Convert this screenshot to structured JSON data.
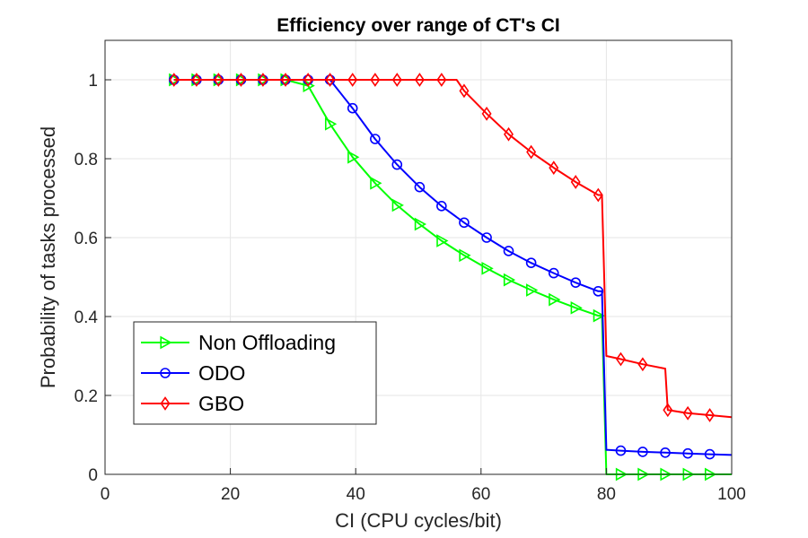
{
  "chart_data": {
    "type": "line",
    "title": "Efficiency over range of CT's CI",
    "xlabel": "CI (CPU cycles/bit)",
    "ylabel": "Probability of tasks processed",
    "xlim": [
      0,
      100
    ],
    "ylim": [
      0,
      1.1
    ],
    "xticks": [
      0,
      20,
      40,
      60,
      80,
      100
    ],
    "xtick_labels": [
      "0",
      "20",
      "40",
      "60",
      "80",
      "100"
    ],
    "yticks": [
      0,
      0.2,
      0.4,
      0.6,
      0.8,
      1
    ],
    "ytick_labels": [
      "0",
      "0.2",
      "0.4",
      "0.6",
      "0.8",
      "1"
    ],
    "grid": true,
    "legend_position": "lower-left",
    "series": [
      {
        "name": "Non Offloading",
        "color": "#00ff00",
        "marker": "triangle-right",
        "x": [
          11,
          14.6,
          18.1,
          21.7,
          25.2,
          28.8,
          32.4,
          35.9,
          39.5,
          43.1,
          46.6,
          50.2,
          53.7,
          57.3,
          60.9,
          64.4,
          68,
          71.6,
          75.1,
          78.7,
          79.3,
          80,
          82.3,
          85.8,
          89.4,
          93,
          96.5,
          100
        ],
        "y": [
          1,
          1,
          1,
          1,
          1,
          1,
          0.985,
          0.888,
          0.804,
          0.738,
          0.682,
          0.634,
          0.592,
          0.555,
          0.522,
          0.493,
          0.467,
          0.443,
          0.422,
          0.402,
          0.402,
          0,
          0,
          0,
          0,
          0,
          0,
          0
        ],
        "marker_indices": [
          0,
          1,
          2,
          3,
          4,
          5,
          6,
          7,
          8,
          9,
          10,
          11,
          12,
          13,
          14,
          15,
          16,
          17,
          18,
          19,
          22,
          23,
          24,
          25,
          26
        ]
      },
      {
        "name": "ODO",
        "color": "#0000ff",
        "marker": "circle",
        "x": [
          11,
          14.6,
          18.1,
          21.7,
          25.2,
          28.8,
          32.4,
          35.9,
          39.5,
          43.1,
          46.6,
          50.2,
          53.7,
          57.3,
          60.9,
          64.4,
          68,
          71.6,
          75.1,
          78.7,
          79.3,
          80,
          80.3,
          82.3,
          85.8,
          89.4,
          93,
          96.5,
          100
        ],
        "y": [
          1,
          1,
          1,
          1,
          1,
          1,
          1,
          1,
          0.928,
          0.85,
          0.785,
          0.728,
          0.68,
          0.638,
          0.6,
          0.566,
          0.536,
          0.51,
          0.486,
          0.464,
          0.464,
          0.062,
          0.062,
          0.06,
          0.057,
          0.055,
          0.053,
          0.051,
          0.049
        ],
        "marker_indices": [
          0,
          1,
          2,
          3,
          4,
          5,
          6,
          7,
          8,
          9,
          10,
          11,
          12,
          13,
          14,
          15,
          16,
          17,
          18,
          19,
          23,
          24,
          25,
          26,
          27
        ]
      },
      {
        "name": "GBO",
        "color": "#ff0000",
        "marker": "diamond",
        "x": [
          11,
          14.6,
          18.1,
          21.7,
          25.2,
          28.8,
          32.4,
          35.9,
          39.5,
          43.1,
          46.6,
          50.2,
          53.7,
          56.1,
          57.3,
          60.9,
          64.4,
          68,
          71.6,
          75.1,
          78.7,
          79.3,
          80,
          82.3,
          85.8,
          89.4,
          89.8,
          93,
          96.5,
          100
        ],
        "y": [
          1,
          1,
          1,
          1,
          1,
          1,
          1,
          1,
          1,
          1,
          1,
          1,
          1,
          1,
          0.972,
          0.914,
          0.862,
          0.817,
          0.777,
          0.741,
          0.708,
          0.708,
          0.3,
          0.292,
          0.279,
          0.268,
          0.163,
          0.155,
          0.15,
          0.145
        ],
        "marker_indices": [
          0,
          1,
          2,
          3,
          4,
          5,
          6,
          7,
          8,
          9,
          10,
          11,
          12,
          14,
          15,
          16,
          17,
          18,
          19,
          20,
          23,
          24,
          26,
          27,
          28
        ]
      }
    ]
  }
}
